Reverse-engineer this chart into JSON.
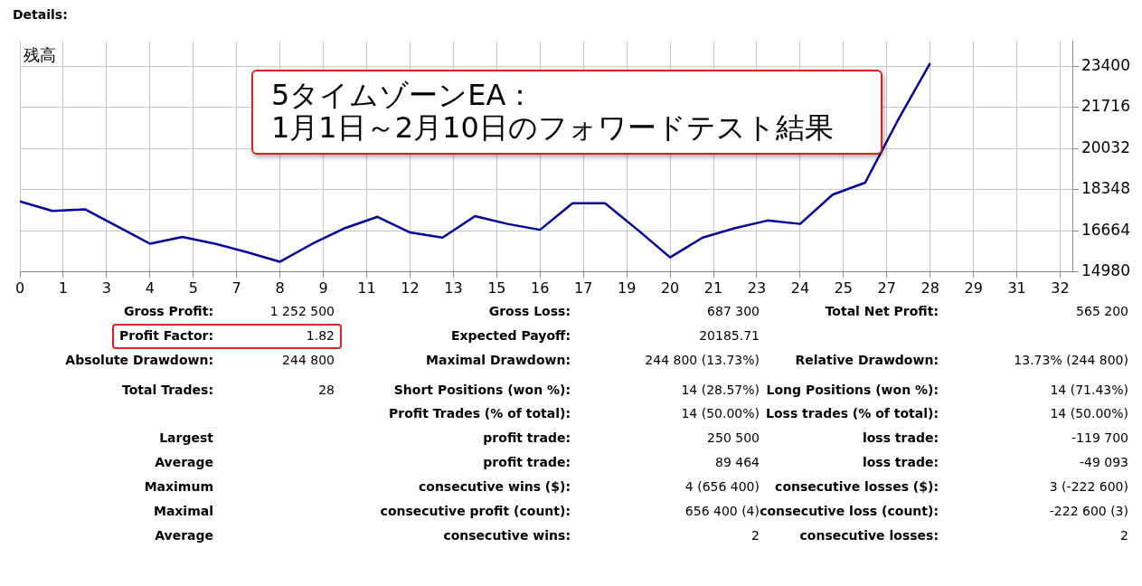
{
  "chart_data": {
    "type": "line",
    "title": "Details:",
    "subtitle": "5タイムゾーンEA：\n1月1日～2月10日のフォワードテスト結果",
    "ylabel": "残高",
    "x": [
      0,
      1,
      2,
      3,
      4,
      5,
      6,
      7,
      8,
      9,
      10,
      11,
      12,
      13,
      14,
      15,
      16,
      17,
      18,
      19,
      20,
      21,
      22,
      23,
      24,
      25,
      26,
      27,
      28
    ],
    "series": [
      {
        "color": "#0000a0",
        "values": [
          17870,
          17480,
          17550,
          16850,
          16140,
          16420,
          16140,
          15790,
          15400,
          16140,
          16780,
          17240,
          16600,
          16390,
          17270,
          16950,
          16710,
          17800,
          17800,
          16710,
          15580,
          16390,
          16780,
          17090,
          16950,
          18150,
          18640,
          21180,
          23540
        ]
      }
    ],
    "xlim": [
      0,
      32.4
    ],
    "xticks": [
      {
        "value": 0,
        "label": "0"
      },
      {
        "value": 1.333,
        "label": "1"
      },
      {
        "value": 2.667,
        "label": "3"
      },
      {
        "value": 4,
        "label": "4"
      },
      {
        "value": 5.333,
        "label": "5"
      },
      {
        "value": 6.667,
        "label": "7"
      },
      {
        "value": 8,
        "label": "8"
      },
      {
        "value": 9.333,
        "label": "9"
      },
      {
        "value": 10.667,
        "label": "11"
      },
      {
        "value": 12,
        "label": "12"
      },
      {
        "value": 13.333,
        "label": "13"
      },
      {
        "value": 14.667,
        "label": "15"
      },
      {
        "value": 16,
        "label": "16"
      },
      {
        "value": 17.333,
        "label": "17"
      },
      {
        "value": 18.667,
        "label": "19"
      },
      {
        "value": 20,
        "label": "20"
      },
      {
        "value": 21.333,
        "label": "21"
      },
      {
        "value": 22.667,
        "label": "23"
      },
      {
        "value": 24,
        "label": "24"
      },
      {
        "value": 25.333,
        "label": "25"
      },
      {
        "value": 26.667,
        "label": "27"
      },
      {
        "value": 28,
        "label": "28"
      },
      {
        "value": 29.333,
        "label": "29"
      },
      {
        "value": 30.667,
        "label": "31"
      },
      {
        "value": 32,
        "label": "32"
      }
    ],
    "ylim": [
      14980,
      24450
    ],
    "yticks": [
      14980,
      16664,
      18348,
      20032,
      21716,
      23400
    ],
    "grid": true,
    "legend": false,
    "marker": "none",
    "line_style": "solid",
    "annotations": [
      "Gross Profit:",
      "1 252 500",
      "Gross Loss:",
      "687 300",
      "Total Net Profit:",
      "565 200",
      "Profit Factor:",
      "1.82",
      "Expected Payoff:",
      "20185.71",
      "Absolute Drawdown:",
      "244 800",
      "Maximal Drawdown:",
      "244 800 (13.73%)",
      "Relative Drawdown:",
      "13.73% (244 800)",
      "Total Trades:",
      "28",
      "Short Positions (won %):",
      "14 (28.57%)",
      "Long Positions (won %):",
      "14 (71.43%)",
      "Profit Trades (% of total):",
      "14 (50.00%)",
      "Loss trades (% of total):",
      "14 (50.00%)",
      "Largest",
      "profit trade:",
      "250 500",
      "loss trade:",
      "-119 700",
      "Average",
      "profit trade:",
      "89 464",
      "loss trade:",
      "-49 093",
      "Maximum",
      "consecutive wins ($):",
      "4 (656 400)",
      "consecutive losses ($):",
      "3 (-222 600)",
      "Maximal",
      "consecutive profit (count):",
      "656 400 (4)",
      "consecutive loss (count):",
      "-222 600 (3)",
      "Average",
      "consecutive wins:",
      "2",
      "consecutive losses:",
      "2"
    ]
  }
}
